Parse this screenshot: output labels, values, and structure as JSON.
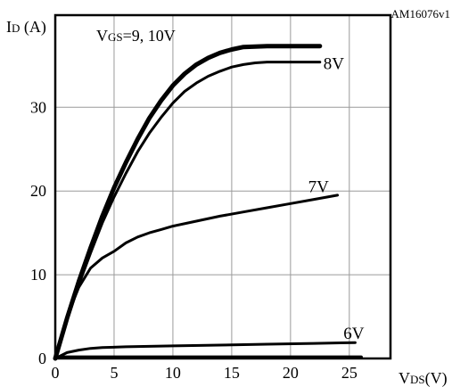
{
  "chart_data": {
    "type": "line",
    "figure_id": "AM16076v1",
    "ylabel": {
      "main": "I",
      "sub": "D",
      "unit": " (A)"
    },
    "xlabel": {
      "main": "V",
      "sub": "DS",
      "unit": "(V)"
    },
    "xlim": [
      0,
      28.5
    ],
    "ylim": [
      0,
      41
    ],
    "xticks": [
      0,
      5,
      10,
      15,
      20,
      25
    ],
    "yticks": [
      0,
      10,
      20,
      30
    ],
    "grid": true,
    "series": [
      {
        "name": "9, 10V",
        "label_prefix": {
          "main": "V",
          "sub": "GS",
          "eq": "=9, 10V"
        },
        "stroke": 5,
        "points": [
          [
            0,
            0
          ],
          [
            1,
            4.8
          ],
          [
            2,
            9.2
          ],
          [
            3,
            13.2
          ],
          [
            4,
            17
          ],
          [
            5,
            20.4
          ],
          [
            6,
            23.4
          ],
          [
            7,
            26.2
          ],
          [
            8,
            28.7
          ],
          [
            9,
            30.8
          ],
          [
            10,
            32.6
          ],
          [
            11,
            34
          ],
          [
            12,
            35.1
          ],
          [
            13,
            35.9
          ],
          [
            14,
            36.5
          ],
          [
            15,
            36.9
          ],
          [
            16,
            37.2
          ],
          [
            18,
            37.3
          ],
          [
            20,
            37.3
          ],
          [
            22.5,
            37.3
          ]
        ]
      },
      {
        "name": "8V",
        "stroke": 3,
        "points": [
          [
            0,
            0
          ],
          [
            1,
            4.6
          ],
          [
            2,
            8.8
          ],
          [
            3,
            12.6
          ],
          [
            4,
            16.2
          ],
          [
            5,
            19.3
          ],
          [
            6,
            22.1
          ],
          [
            7,
            24.7
          ],
          [
            8,
            26.9
          ],
          [
            9,
            28.8
          ],
          [
            10,
            30.5
          ],
          [
            11,
            31.9
          ],
          [
            12,
            32.9
          ],
          [
            13,
            33.7
          ],
          [
            14,
            34.3
          ],
          [
            15,
            34.8
          ],
          [
            16,
            35.1
          ],
          [
            17,
            35.3
          ],
          [
            18,
            35.4
          ],
          [
            20,
            35.4
          ],
          [
            22.5,
            35.4
          ]
        ]
      },
      {
        "name": "7V",
        "stroke": 3,
        "points": [
          [
            0,
            0
          ],
          [
            1,
            5
          ],
          [
            2,
            8.5
          ],
          [
            3,
            10.8
          ],
          [
            4,
            12
          ],
          [
            5,
            12.8
          ],
          [
            6,
            13.8
          ],
          [
            7,
            14.5
          ],
          [
            8,
            15
          ],
          [
            9,
            15.4
          ],
          [
            10,
            15.8
          ],
          [
            12,
            16.4
          ],
          [
            14,
            17
          ],
          [
            16,
            17.5
          ],
          [
            18,
            18
          ],
          [
            20,
            18.5
          ],
          [
            22,
            19
          ],
          [
            24,
            19.5
          ]
        ]
      },
      {
        "name": "6V",
        "stroke": 3,
        "points": [
          [
            0,
            0
          ],
          [
            1,
            0.7
          ],
          [
            2,
            1
          ],
          [
            3,
            1.2
          ],
          [
            4,
            1.3
          ],
          [
            6,
            1.4
          ],
          [
            10,
            1.5
          ],
          [
            14,
            1.6
          ],
          [
            18,
            1.7
          ],
          [
            22,
            1.8
          ],
          [
            25.5,
            1.9
          ]
        ]
      },
      {
        "name": "",
        "stroke": 4,
        "points": [
          [
            0,
            0.15
          ],
          [
            26,
            0.15
          ]
        ]
      }
    ],
    "series_labels": [
      {
        "text": "8V",
        "at": [
          22.8,
          35.2
        ]
      },
      {
        "text": "7V",
        "at": [
          21.5,
          20.5
        ]
      },
      {
        "text": "6V",
        "at": [
          24.5,
          3.0
        ]
      }
    ]
  }
}
